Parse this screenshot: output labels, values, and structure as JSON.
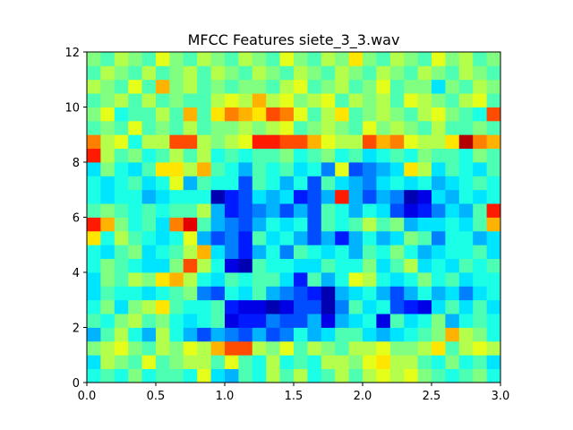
{
  "chart_data": {
    "type": "heatmap",
    "title": "MFCC Features siete_3_3.wav",
    "xlabel": "",
    "ylabel": "",
    "xlim": [
      0.0,
      3.0
    ],
    "ylim": [
      0,
      12
    ],
    "x_ticks": [
      "0.0",
      "0.5",
      "1.0",
      "1.5",
      "2.0",
      "2.5",
      "3.0"
    ],
    "y_ticks": [
      "0",
      "2",
      "4",
      "6",
      "8",
      "10",
      "12"
    ],
    "colormap": "jet",
    "grid": false,
    "rows": 24,
    "cols": 30,
    "values": [
      [
        0.4,
        0.45,
        0.4,
        0.5,
        0.4,
        0.45,
        0.45,
        0.4,
        0.6,
        0.35,
        0.3,
        0.45,
        0.4,
        0.55,
        0.45,
        0.55,
        0.4,
        0.45,
        0.55,
        0.45,
        0.55,
        0.6,
        0.55,
        0.6,
        0.5,
        0.45,
        0.4,
        0.45,
        0.5,
        0.4
      ],
      [
        0.35,
        0.55,
        0.5,
        0.45,
        0.6,
        0.45,
        0.5,
        0.55,
        0.55,
        0.45,
        0.6,
        0.45,
        0.4,
        0.55,
        0.4,
        0.45,
        0.4,
        0.55,
        0.55,
        0.5,
        0.6,
        0.65,
        0.55,
        0.55,
        0.45,
        0.4,
        0.5,
        0.4,
        0.45,
        0.35
      ],
      [
        0.5,
        0.55,
        0.6,
        0.5,
        0.45,
        0.55,
        0.5,
        0.6,
        0.55,
        0.7,
        0.8,
        0.8,
        0.55,
        0.5,
        0.6,
        0.45,
        0.55,
        0.5,
        0.45,
        0.55,
        0.55,
        0.6,
        0.5,
        0.5,
        0.55,
        0.65,
        0.45,
        0.55,
        0.6,
        0.55
      ],
      [
        0.3,
        0.45,
        0.55,
        0.4,
        0.3,
        0.55,
        0.4,
        0.3,
        0.2,
        0.3,
        0.25,
        0.2,
        0.3,
        0.2,
        0.25,
        0.4,
        0.3,
        0.35,
        0.45,
        0.45,
        0.35,
        0.3,
        0.35,
        0.4,
        0.45,
        0.5,
        0.7,
        0.55,
        0.5,
        0.4
      ],
      [
        0.45,
        0.4,
        0.5,
        0.55,
        0.45,
        0.5,
        0.4,
        0.35,
        0.4,
        0.45,
        0.1,
        0.15,
        0.15,
        0.25,
        0.2,
        0.2,
        0.3,
        0.1,
        0.3,
        0.35,
        0.4,
        0.1,
        0.45,
        0.35,
        0.4,
        0.5,
        0.3,
        0.4,
        0.45,
        0.4
      ],
      [
        0.4,
        0.5,
        0.35,
        0.5,
        0.55,
        0.65,
        0.45,
        0.4,
        0.4,
        0.45,
        0.15,
        0.1,
        0.1,
        0.05,
        0.1,
        0.2,
        0.2,
        0.05,
        0.25,
        0.45,
        0.35,
        0.4,
        0.2,
        0.15,
        0.1,
        0.35,
        0.45,
        0.35,
        0.45,
        0.35
      ],
      [
        0.35,
        0.45,
        0.4,
        0.4,
        0.35,
        0.4,
        0.45,
        0.5,
        0.25,
        0.2,
        0.4,
        0.35,
        0.45,
        0.3,
        0.25,
        0.2,
        0.15,
        0.05,
        0.3,
        0.35,
        0.4,
        0.3,
        0.2,
        0.3,
        0.4,
        0.3,
        0.35,
        0.25,
        0.35,
        0.4
      ],
      [
        0.35,
        0.5,
        0.45,
        0.55,
        0.5,
        0.65,
        0.7,
        0.55,
        0.4,
        0.35,
        0.45,
        0.4,
        0.45,
        0.45,
        0.35,
        0.15,
        0.45,
        0.3,
        0.4,
        0.6,
        0.55,
        0.4,
        0.35,
        0.4,
        0.5,
        0.4,
        0.45,
        0.35,
        0.4,
        0.4
      ],
      [
        0.4,
        0.5,
        0.45,
        0.4,
        0.35,
        0.35,
        0.5,
        0.8,
        0.55,
        0.4,
        0.1,
        0.05,
        0.45,
        0.4,
        0.4,
        0.35,
        0.35,
        0.45,
        0.4,
        0.4,
        0.5,
        0.35,
        0.45,
        0.55,
        0.35,
        0.4,
        0.35,
        0.45,
        0.4,
        0.45
      ],
      [
        0.4,
        0.35,
        0.45,
        0.5,
        0.35,
        0.4,
        0.45,
        0.55,
        0.7,
        0.35,
        0.25,
        0.15,
        0.3,
        0.4,
        0.25,
        0.45,
        0.4,
        0.35,
        0.4,
        0.3,
        0.45,
        0.4,
        0.5,
        0.4,
        0.3,
        0.35,
        0.4,
        0.4,
        0.45,
        0.35
      ],
      [
        0.65,
        0.4,
        0.55,
        0.45,
        0.4,
        0.35,
        0.4,
        0.6,
        0.3,
        0.2,
        0.25,
        0.15,
        0.45,
        0.35,
        0.4,
        0.3,
        0.2,
        0.3,
        0.15,
        0.3,
        0.4,
        0.3,
        0.35,
        0.5,
        0.45,
        0.25,
        0.4,
        0.4,
        0.3,
        0.35
      ],
      [
        0.85,
        0.7,
        0.5,
        0.4,
        0.45,
        0.35,
        0.75,
        0.9,
        0.45,
        0.3,
        0.25,
        0.2,
        0.3,
        0.4,
        0.35,
        0.4,
        0.2,
        0.45,
        0.4,
        0.45,
        0.55,
        0.45,
        0.5,
        0.3,
        0.35,
        0.35,
        0.4,
        0.35,
        0.45,
        0.7
      ],
      [
        0.45,
        0.5,
        0.45,
        0.4,
        0.45,
        0.4,
        0.45,
        0.45,
        0.55,
        0.3,
        0.15,
        0.2,
        0.25,
        0.3,
        0.2,
        0.3,
        0.2,
        0.45,
        0.4,
        0.3,
        0.4,
        0.35,
        0.2,
        0.1,
        0.15,
        0.25,
        0.35,
        0.3,
        0.45,
        0.85
      ],
      [
        0.4,
        0.35,
        0.4,
        0.4,
        0.3,
        0.35,
        0.4,
        0.4,
        0.4,
        0.05,
        0.15,
        0.2,
        0.35,
        0.3,
        0.35,
        0.15,
        0.2,
        0.3,
        0.85,
        0.3,
        0.2,
        0.3,
        0.25,
        0.05,
        0.1,
        0.35,
        0.3,
        0.4,
        0.35,
        0.4
      ],
      [
        0.4,
        0.35,
        0.4,
        0.45,
        0.35,
        0.4,
        0.6,
        0.3,
        0.45,
        0.4,
        0.4,
        0.2,
        0.45,
        0.4,
        0.3,
        0.4,
        0.2,
        0.45,
        0.35,
        0.3,
        0.25,
        0.35,
        0.4,
        0.35,
        0.4,
        0.3,
        0.35,
        0.4,
        0.45,
        0.4
      ],
      [
        0.35,
        0.5,
        0.4,
        0.35,
        0.45,
        0.65,
        0.65,
        0.55,
        0.7,
        0.45,
        0.4,
        0.3,
        0.45,
        0.4,
        0.45,
        0.35,
        0.4,
        0.25,
        0.6,
        0.2,
        0.25,
        0.3,
        0.35,
        0.65,
        0.55,
        0.35,
        0.45,
        0.4,
        0.35,
        0.45
      ],
      [
        0.85,
        0.55,
        0.45,
        0.5,
        0.4,
        0.45,
        0.55,
        0.45,
        0.55,
        0.4,
        0.45,
        0.4,
        0.45,
        0.45,
        0.5,
        0.4,
        0.45,
        0.5,
        0.4,
        0.45,
        0.35,
        0.4,
        0.45,
        0.4,
        0.5,
        0.45,
        0.45,
        0.4,
        0.5,
        0.45
      ],
      [
        0.75,
        0.55,
        0.6,
        0.4,
        0.55,
        0.55,
        0.8,
        0.8,
        0.55,
        0.5,
        0.55,
        0.6,
        0.85,
        0.85,
        0.8,
        0.8,
        0.7,
        0.6,
        0.55,
        0.55,
        0.8,
        0.7,
        0.75,
        0.6,
        0.55,
        0.55,
        0.65,
        0.95,
        0.75,
        0.7
      ],
      [
        0.45,
        0.5,
        0.45,
        0.6,
        0.45,
        0.5,
        0.45,
        0.55,
        0.45,
        0.5,
        0.5,
        0.55,
        0.5,
        0.55,
        0.6,
        0.45,
        0.5,
        0.55,
        0.5,
        0.45,
        0.6,
        0.5,
        0.55,
        0.5,
        0.45,
        0.55,
        0.45,
        0.45,
        0.5,
        0.45
      ],
      [
        0.5,
        0.6,
        0.4,
        0.45,
        0.45,
        0.55,
        0.45,
        0.7,
        0.45,
        0.65,
        0.75,
        0.7,
        0.65,
        0.8,
        0.75,
        0.6,
        0.45,
        0.55,
        0.65,
        0.45,
        0.5,
        0.55,
        0.5,
        0.45,
        0.55,
        0.6,
        0.5,
        0.45,
        0.4,
        0.8
      ],
      [
        0.45,
        0.5,
        0.55,
        0.45,
        0.55,
        0.45,
        0.5,
        0.45,
        0.45,
        0.55,
        0.6,
        0.55,
        0.7,
        0.55,
        0.6,
        0.5,
        0.55,
        0.6,
        0.45,
        0.55,
        0.5,
        0.55,
        0.45,
        0.6,
        0.55,
        0.5,
        0.45,
        0.55,
        0.6,
        0.45
      ],
      [
        0.55,
        0.5,
        0.45,
        0.6,
        0.45,
        0.7,
        0.5,
        0.55,
        0.45,
        0.5,
        0.45,
        0.5,
        0.5,
        0.45,
        0.55,
        0.6,
        0.45,
        0.5,
        0.55,
        0.45,
        0.5,
        0.6,
        0.45,
        0.5,
        0.5,
        0.35,
        0.5,
        0.45,
        0.55,
        0.5
      ],
      [
        0.45,
        0.55,
        0.5,
        0.45,
        0.55,
        0.45,
        0.5,
        0.55,
        0.45,
        0.55,
        0.5,
        0.45,
        0.55,
        0.5,
        0.45,
        0.55,
        0.5,
        0.45,
        0.55,
        0.5,
        0.45,
        0.55,
        0.5,
        0.45,
        0.55,
        0.5,
        0.45,
        0.55,
        0.5,
        0.45
      ],
      [
        0.5,
        0.45,
        0.55,
        0.5,
        0.45,
        0.6,
        0.5,
        0.45,
        0.55,
        0.5,
        0.45,
        0.55,
        0.5,
        0.45,
        0.6,
        0.5,
        0.45,
        0.55,
        0.5,
        0.65,
        0.5,
        0.45,
        0.55,
        0.5,
        0.45,
        0.6,
        0.5,
        0.55,
        0.45,
        0.5
      ]
    ]
  }
}
